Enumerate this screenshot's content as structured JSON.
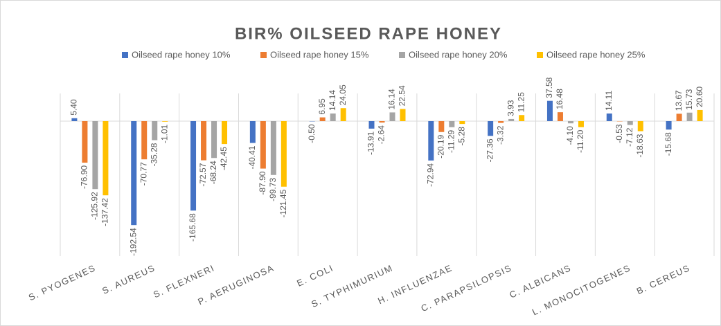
{
  "chart_data": {
    "type": "bar",
    "title": "BIR% OILSEED RAPE HONEY",
    "categories": [
      "S. PYOGENES",
      "S. AUREUS",
      "S. FLEXNERI",
      "P. AERUGINOSA",
      "E. COLI",
      "S. TYPHIMURIUM",
      "H. INFLUENZAE",
      "C. PARAPSILOPSIS",
      "C. ALBICANS",
      "L. MONOCITOGENES",
      "B. CEREUS"
    ],
    "series": [
      {
        "name": "Oilseed rape honey 10%",
        "color": "#4472c4",
        "values": [
          5.4,
          -192.54,
          -165.68,
          -40.41,
          -0.5,
          -13.91,
          -72.94,
          -27.36,
          37.58,
          14.11,
          -15.68
        ],
        "value_labels": [
          "5.40",
          "-192.54",
          "-165.68",
          "-40.41",
          "-0.50",
          "-13.91",
          "-72.94",
          "-27.36",
          "37.58",
          "14.11",
          "-15.68"
        ]
      },
      {
        "name": "Oilseed rape honey 15%",
        "color": "#ed7d31",
        "values": [
          -76.9,
          -70.77,
          -72.57,
          -87.9,
          6.95,
          -2.64,
          -20.19,
          -3.32,
          16.48,
          -0.53,
          13.67
        ],
        "value_labels": [
          "-76.90",
          "-70.77",
          "-72.57",
          "-87.90",
          "6.95",
          "-2.64",
          "-20.19",
          "-3.32",
          "16.48",
          "-0.53",
          "13.67"
        ]
      },
      {
        "name": "Oilseed rape honey 20%",
        "color": "#a5a5a5",
        "values": [
          -125.92,
          -35.28,
          -68.24,
          -99.73,
          14.14,
          16.14,
          -11.29,
          3.93,
          -4.1,
          -7.12,
          15.73
        ],
        "value_labels": [
          "-125.92",
          "-35.28",
          "-68.24",
          "-99.73",
          "14.14",
          "16.14",
          "-11.29",
          "3.93",
          "-4.10",
          "-7.12",
          "15.73"
        ]
      },
      {
        "name": "Oilseed rape honey 25%",
        "color": "#ffc000",
        "values": [
          -137.42,
          -1.01,
          -42.45,
          -121.45,
          24.05,
          22.54,
          -5.28,
          11.25,
          -11.2,
          -18.63,
          20.6
        ],
        "value_labels": [
          "-137.42",
          "-1.01",
          "-42.45",
          "-121.45",
          "24.05",
          "22.54",
          "-5.28",
          "11.25",
          "-11.20",
          "-18.63",
          "20.60"
        ]
      }
    ]
  }
}
